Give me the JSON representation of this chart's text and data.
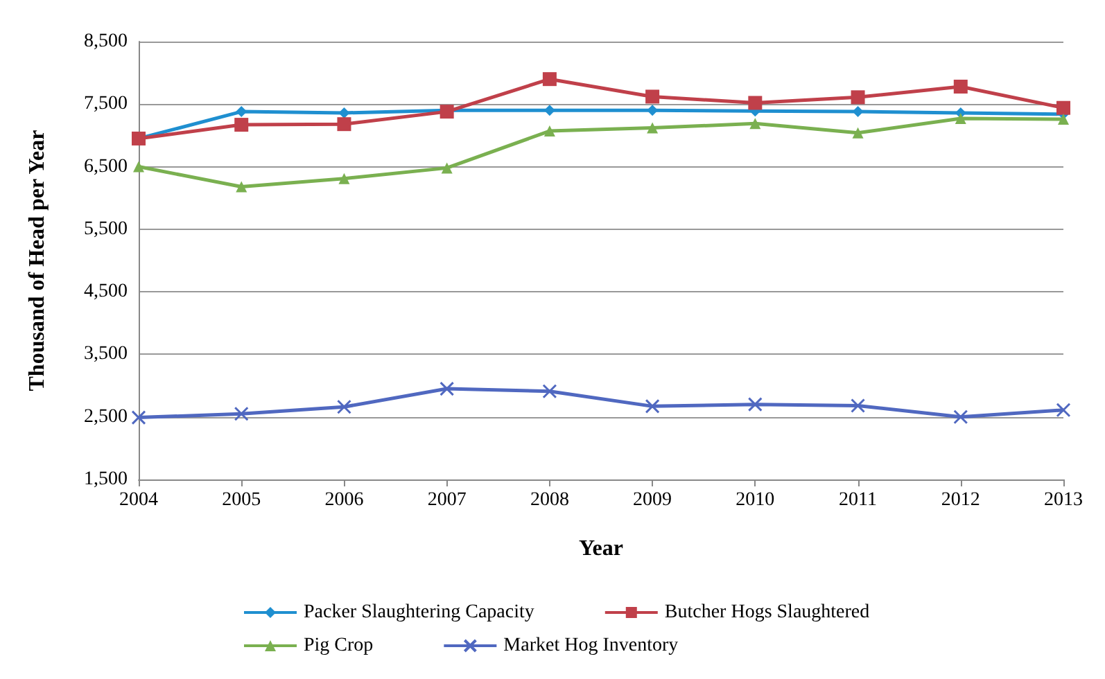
{
  "chart_data": {
    "type": "line",
    "xlabel": "Year",
    "ylabel": "Thousand of Head per Year",
    "categories": [
      "2004",
      "2005",
      "2006",
      "2007",
      "2008",
      "2009",
      "2010",
      "2011",
      "2012",
      "2013"
    ],
    "series": [
      {
        "name": "Packer Slaughtering Capacity",
        "color": "#1f8fd0",
        "marker": "diamond",
        "values": [
          6950,
          7380,
          7360,
          7400,
          7400,
          7400,
          7390,
          7380,
          7360,
          7340
        ]
      },
      {
        "name": "Butcher Hogs Slaughtered",
        "color": "#c0404a",
        "marker": "square",
        "values": [
          6950,
          7170,
          7180,
          7380,
          7900,
          7620,
          7520,
          7610,
          7780,
          7440
        ]
      },
      {
        "name": "Pig Crop",
        "color": "#7ab050",
        "marker": "triangle",
        "values": [
          6500,
          6180,
          6310,
          6480,
          7070,
          7120,
          7190,
          7040,
          7270,
          7260
        ]
      },
      {
        "name": "Market Hog Inventory",
        "color": "#5068c0",
        "marker": "cross",
        "values": [
          2490,
          2550,
          2660,
          2950,
          2910,
          2670,
          2700,
          2680,
          2500,
          2610
        ]
      }
    ],
    "ylim": [
      1500,
      8500
    ],
    "yticks": [
      {
        "value": 1500,
        "label": "1,500"
      },
      {
        "value": 2500,
        "label": "2,500"
      },
      {
        "value": 3500,
        "label": "3,500"
      },
      {
        "value": 4500,
        "label": "4,500"
      },
      {
        "value": 5500,
        "label": "5,500"
      },
      {
        "value": 6500,
        "label": "6,500"
      },
      {
        "value": 7500,
        "label": "7,500"
      },
      {
        "value": 8500,
        "label": "8,500"
      }
    ],
    "grid": "y",
    "legend": "bottom"
  }
}
